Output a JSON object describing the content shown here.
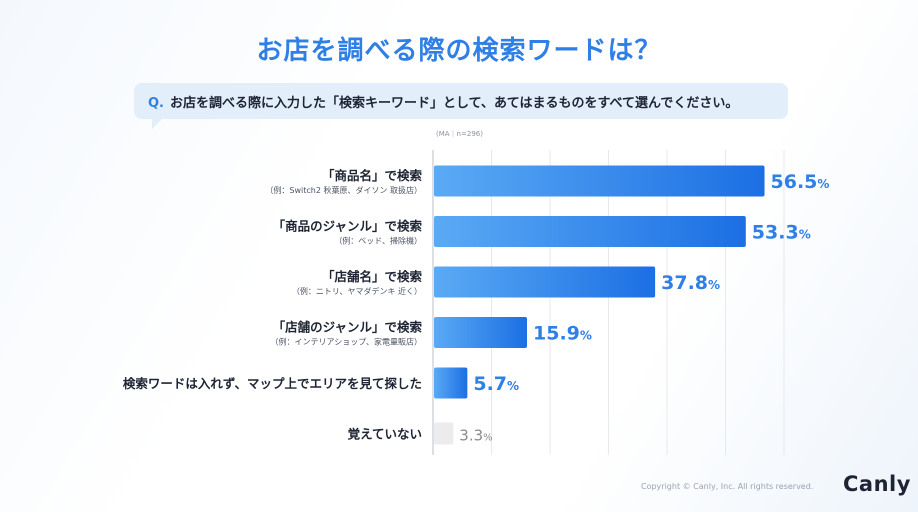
{
  "title": "お店を調べる際の検索ワードは？",
  "question": {
    "prefix": "Q.",
    "text": "お店を調べる際に入力した「検索キーワード」として、あてはまるものをすべて選んでください。"
  },
  "note": "(MA｜n=296)",
  "footer": {
    "copyright": "Copyright © Canly, Inc. All rights reserved.",
    "logo": "Canly"
  },
  "colors": {
    "bar_gradient_start": "#5aaaf5",
    "bar_gradient_end": "#1c6fe3",
    "bar_muted": "#ececec",
    "value_text": "#2f7fe6",
    "value_muted": "#8a8a8a"
  },
  "chart_data": {
    "type": "bar",
    "orientation": "horizontal",
    "unit": "%",
    "xlim": [
      0,
      60
    ],
    "grid": true,
    "categories": [
      {
        "label": "「商品名」で検索",
        "sublabel": "（例：Switch2 秋葉原、ダイソン 取扱店）",
        "value": 56.5
      },
      {
        "label": "「商品のジャンル」で検索",
        "sublabel": "（例：ベッド、掃除機）",
        "value": 53.3
      },
      {
        "label": "「店舗名」で検索",
        "sublabel": "（例：ニトリ、ヤマダデンキ 近く）",
        "value": 37.8
      },
      {
        "label": "「店舗のジャンル」で検索",
        "sublabel": "（例：インテリアショップ、家電量販店）",
        "value": 15.9
      },
      {
        "label": "検索ワードは入れず、マップ上でエリアを見て探した",
        "sublabel": "",
        "value": 5.7
      },
      {
        "label": "覚えていない",
        "sublabel": "",
        "value": 3.3,
        "muted": true
      }
    ]
  }
}
